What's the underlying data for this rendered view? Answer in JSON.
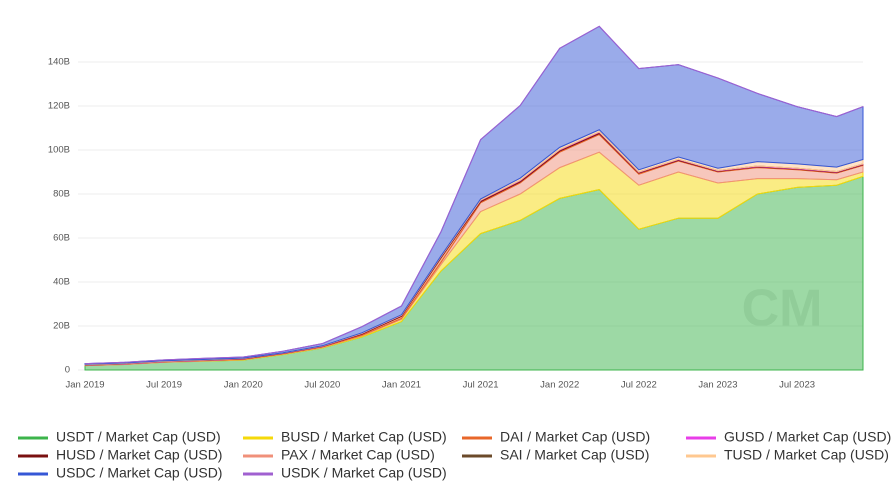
{
  "chart_data": {
    "type": "stacked_area",
    "watermark": "CM",
    "x": [
      "2019-01",
      "2019-04",
      "2019-07",
      "2019-10",
      "2020-01",
      "2020-04",
      "2020-07",
      "2020-10",
      "2021-01",
      "2021-04",
      "2021-07",
      "2021-10",
      "2022-01",
      "2022-04",
      "2022-07",
      "2022-10",
      "2023-01",
      "2023-04",
      "2023-07",
      "2023-10",
      "2023-12"
    ],
    "xlim": [
      "2019-01",
      "2023-12"
    ],
    "xticks": [
      {
        "value": "2019-01",
        "label": "Jan 2019"
      },
      {
        "value": "2019-07",
        "label": "Jul 2019"
      },
      {
        "value": "2020-01",
        "label": "Jan 2020"
      },
      {
        "value": "2020-07",
        "label": "Jul 2020"
      },
      {
        "value": "2021-01",
        "label": "Jan 2021"
      },
      {
        "value": "2021-07",
        "label": "Jul 2021"
      },
      {
        "value": "2022-01",
        "label": "Jan 2022"
      },
      {
        "value": "2022-07",
        "label": "Jul 2022"
      },
      {
        "value": "2023-01",
        "label": "Jan 2023"
      },
      {
        "value": "2023-07",
        "label": "Jul 2023"
      }
    ],
    "ylim": [
      0,
      150
    ],
    "yticks": [
      {
        "value": 0,
        "label": "0"
      },
      {
        "value": 20,
        "label": "20B"
      },
      {
        "value": 40,
        "label": "40B"
      },
      {
        "value": 60,
        "label": "60B"
      },
      {
        "value": 80,
        "label": "80B"
      },
      {
        "value": 100,
        "label": "100B"
      },
      {
        "value": 120,
        "label": "120B"
      },
      {
        "value": 140,
        "label": "140B"
      }
    ],
    "grid": true,
    "series": [
      {
        "name": "USDT / Market Cap (USD)",
        "color": "#3cb44b",
        "values": [
          2,
          2.5,
          3.5,
          4,
          4.5,
          7,
          10,
          15,
          22,
          45,
          62,
          68,
          78,
          82,
          64,
          69,
          69,
          80,
          83,
          84,
          88
        ]
      },
      {
        "name": "BUSD / Market Cap (USD)",
        "color": "#f5d90a",
        "values": [
          0,
          0,
          0,
          0.1,
          0.2,
          0.2,
          0.2,
          0.5,
          1,
          3,
          10,
          12,
          14,
          17,
          20,
          21,
          16,
          7,
          4,
          2.5,
          2
        ]
      },
      {
        "name": "DAI / Market Cap (USD)",
        "color": "#e8672a",
        "values": [
          0.1,
          0.1,
          0.1,
          0.1,
          0.1,
          0.1,
          0.2,
          0.5,
          1,
          2,
          0.5,
          0.5,
          0.5,
          0.5,
          0.5,
          0.3,
          0.3,
          0.3,
          0.3,
          0.3,
          0.3
        ]
      },
      {
        "name": "GUSD / Market Cap (USD)",
        "color": "#e83ee8",
        "values": [
          0.1,
          0.1,
          0.1,
          0.1,
          0.1,
          0.1,
          0.1,
          0.1,
          0.1,
          0.1,
          0.2,
          0.2,
          0.2,
          0.2,
          0.2,
          0.2,
          0.2,
          0.2,
          0.2,
          0.2,
          0.2
        ]
      },
      {
        "name": "HUSD / Market Cap (USD)",
        "color": "#7a1010",
        "values": [
          0,
          0,
          0,
          0,
          0.1,
          0.1,
          0.1,
          0.3,
          0.4,
          0.5,
          0.5,
          0.5,
          0.5,
          0.5,
          0.3,
          0.3,
          0.2,
          0.2,
          0.2,
          0.2,
          0.2
        ]
      },
      {
        "name": "PAX / Market Cap (USD)",
        "color": "#f0907a",
        "values": [
          0.1,
          0.2,
          0.2,
          0.2,
          0.2,
          0.2,
          0.3,
          0.3,
          0.4,
          1,
          4,
          5,
          7,
          8,
          5,
          5,
          5,
          5,
          4,
          3,
          3
        ]
      },
      {
        "name": "SAI / Market Cap (USD)",
        "color": "#6b4a2a",
        "values": [
          0.1,
          0.1,
          0.1,
          0.1,
          0.1,
          0,
          0,
          0,
          0,
          0,
          0,
          0,
          0,
          0,
          0,
          0,
          0,
          0,
          0,
          0,
          0
        ]
      },
      {
        "name": "TUSD / Market Cap (USD)",
        "color": "#ffc890",
        "values": [
          0.2,
          0.2,
          0.2,
          0.2,
          0.1,
          0.1,
          0.1,
          0.2,
          0.2,
          0.3,
          0.5,
          1,
          1,
          1,
          1,
          1,
          1,
          2,
          2,
          2,
          2
        ]
      },
      {
        "name": "USDC / Market Cap (USD)",
        "color": "#3557d6",
        "values": [
          0.3,
          0.3,
          0.4,
          0.5,
          0.5,
          0.7,
          1,
          2.8,
          4,
          11,
          27,
          33,
          45,
          47,
          46,
          42,
          41,
          31,
          26,
          23,
          24
        ]
      },
      {
        "name": "USDK / Market Cap (USD)",
        "color": "#a060d0",
        "values": [
          0,
          0,
          0,
          0.03,
          0.03,
          0.03,
          0.03,
          0.03,
          0.03,
          0.03,
          0.03,
          0.03,
          0.03,
          0.03,
          0.03,
          0.03,
          0.03,
          0.03,
          0.03,
          0.03,
          0.03
        ]
      }
    ]
  }
}
